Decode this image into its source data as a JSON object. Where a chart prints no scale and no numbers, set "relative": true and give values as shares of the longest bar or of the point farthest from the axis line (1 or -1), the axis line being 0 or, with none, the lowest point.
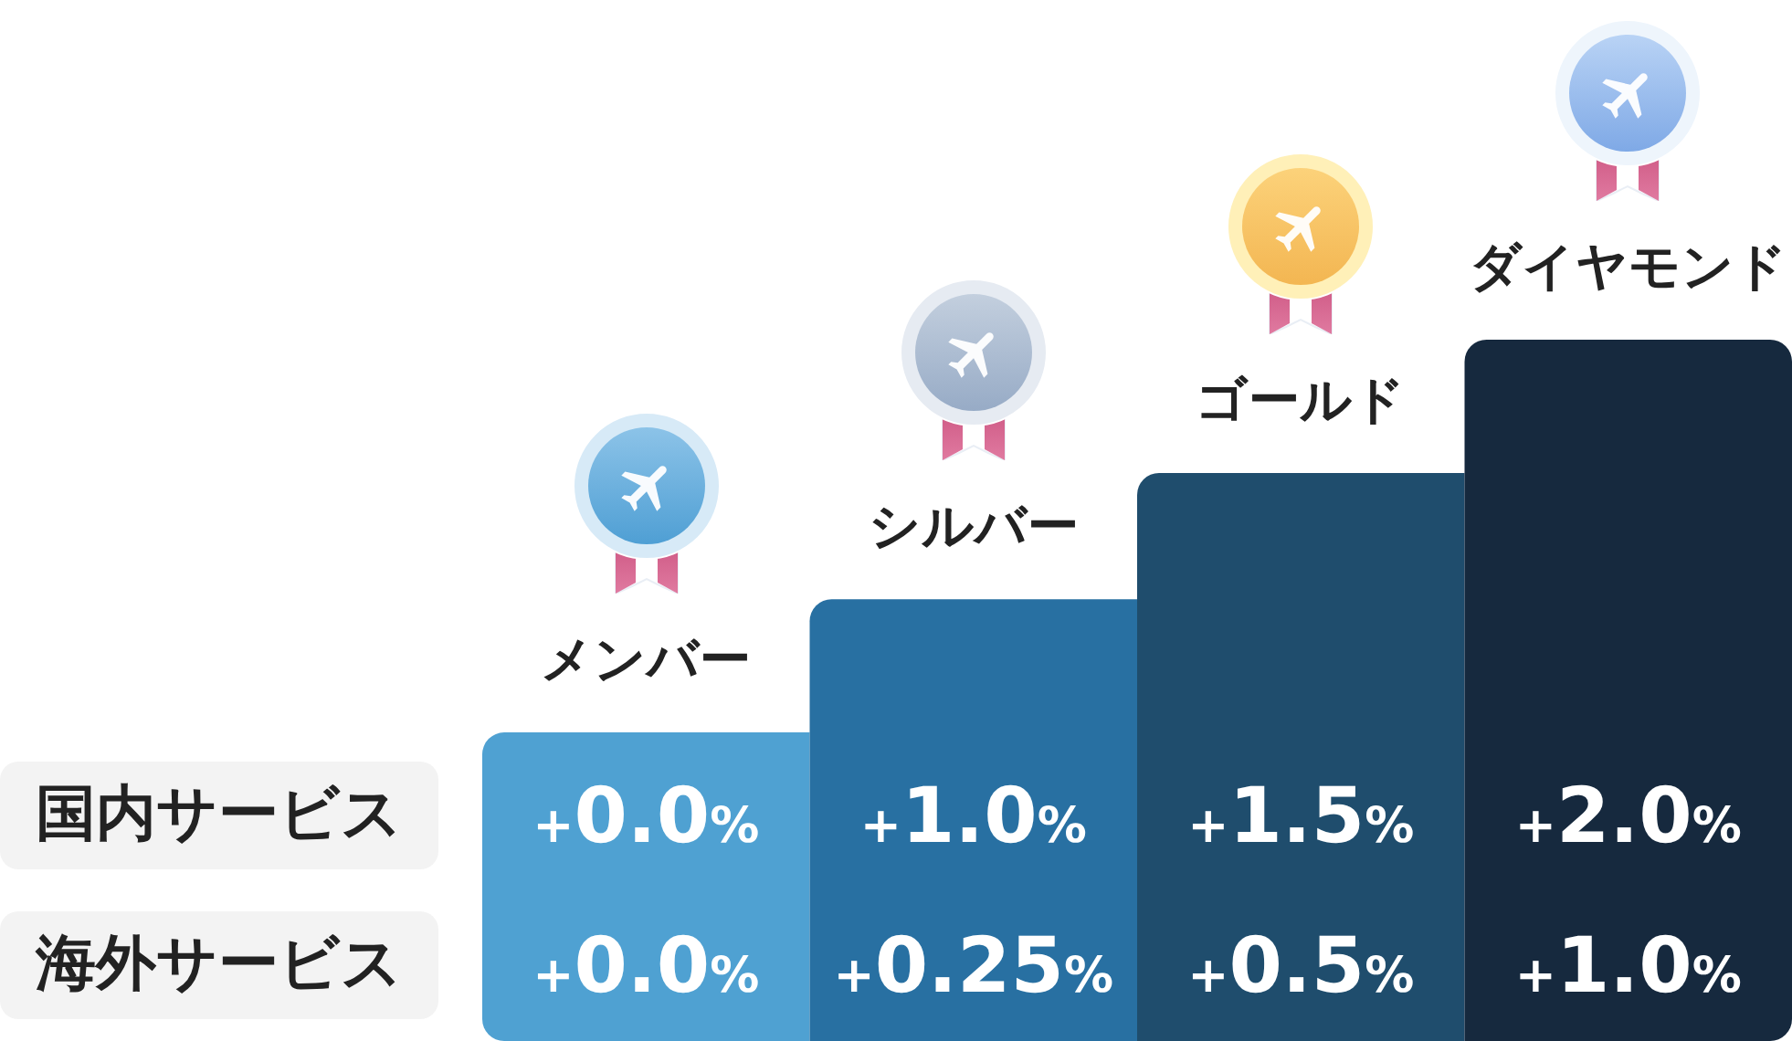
{
  "chart_data": {
    "type": "bar",
    "relative": true,
    "categories": [
      "メンバー",
      "シルバー",
      "ゴールド",
      "ダイヤモンド"
    ],
    "values": [
      0.44,
      0.63,
      0.81,
      1
    ],
    "colors": [
      "#4fa1d2",
      "#2870a2",
      "#1f4d6d",
      "#16293e"
    ],
    "annotations": [
      "国内サービス",
      "+0.0%",
      "+1.0%",
      "+1.5%",
      "+2.0%",
      "海外サービス",
      "+0.0%",
      "+0.25%",
      "+0.5%",
      "+1.0%"
    ]
  }
}
